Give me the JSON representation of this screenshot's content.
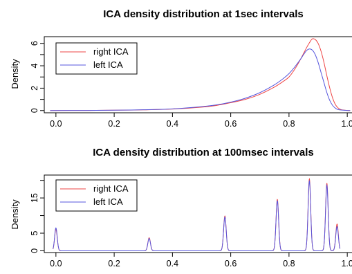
{
  "chart_data": [
    {
      "type": "line",
      "title": "ICA density distribution at 1sec intervals",
      "xlabel": "",
      "ylabel": "Density",
      "xlim": [
        -0.04,
        1.04
      ],
      "ylim": [
        -0.2,
        6.6
      ],
      "x_ticks": [
        0.0,
        0.2,
        0.4,
        0.6,
        0.8,
        1.0
      ],
      "x_tick_labels": [
        "0.0",
        "0.2",
        "0.4",
        "0.6",
        "0.8",
        "1.0"
      ],
      "y_ticks": [
        0,
        2,
        4,
        6
      ],
      "y_tick_labels": [
        "0",
        "2",
        "4",
        "6"
      ],
      "y_minor_ticks": [
        1,
        3,
        5
      ],
      "grid": false,
      "legend_position": "top-left",
      "series": [
        {
          "name": "right ICA",
          "color": "#ee4444",
          "x": [
            -0.02,
            0.1,
            0.2,
            0.3,
            0.4,
            0.5,
            0.55,
            0.6,
            0.65,
            0.7,
            0.75,
            0.78,
            0.8,
            0.82,
            0.84,
            0.86,
            0.87,
            0.88,
            0.89,
            0.9,
            0.91,
            0.92,
            0.93,
            0.94,
            0.95,
            0.96,
            0.97,
            0.98,
            1.0,
            1.01
          ],
          "y": [
            0,
            0.01,
            0.03,
            0.06,
            0.13,
            0.3,
            0.45,
            0.7,
            1.0,
            1.45,
            2.1,
            2.6,
            3.0,
            3.7,
            4.6,
            5.6,
            6.05,
            6.4,
            6.35,
            6.0,
            5.3,
            4.3,
            3.1,
            2.0,
            1.1,
            0.5,
            0.2,
            0.07,
            0.01,
            0
          ]
        },
        {
          "name": "left ICA",
          "color": "#5555dd",
          "x": [
            -0.02,
            0.1,
            0.2,
            0.3,
            0.4,
            0.5,
            0.55,
            0.6,
            0.65,
            0.7,
            0.75,
            0.78,
            0.8,
            0.82,
            0.84,
            0.85,
            0.86,
            0.87,
            0.88,
            0.89,
            0.9,
            0.91,
            0.92,
            0.93,
            0.94,
            0.95,
            0.96,
            0.97,
            1.0,
            1.01
          ],
          "y": [
            0,
            0.01,
            0.03,
            0.07,
            0.15,
            0.35,
            0.5,
            0.75,
            1.1,
            1.6,
            2.3,
            2.85,
            3.3,
            3.9,
            4.6,
            5.0,
            5.35,
            5.5,
            5.4,
            5.0,
            4.3,
            3.4,
            2.5,
            1.6,
            0.9,
            0.45,
            0.2,
            0.08,
            0.01,
            0
          ]
        }
      ]
    },
    {
      "type": "line",
      "title": "ICA density distribution at 100msec intervals",
      "xlabel": "",
      "ylabel": "Density",
      "xlim": [
        -0.04,
        1.04
      ],
      "ylim": [
        -0.5,
        21.5
      ],
      "x_ticks": [
        0.0,
        0.2,
        0.4,
        0.6,
        0.8,
        1.0
      ],
      "x_tick_labels": [
        "0.0",
        "0.2",
        "0.4",
        "0.6",
        "0.8",
        "1.0"
      ],
      "y_ticks": [
        0,
        5,
        15
      ],
      "y_tick_labels": [
        "0",
        "5",
        "15"
      ],
      "y_minor_ticks": [
        10,
        20
      ],
      "grid": false,
      "legend_position": "top-left",
      "peak_width": 0.0045,
      "series": [
        {
          "name": "right ICA",
          "color": "#ee4444",
          "x_range": [
            -0.01,
            0.975
          ],
          "peaks": [
            {
              "x": 0.0,
              "y": 6.1
            },
            {
              "x": 0.32,
              "y": 3.7
            },
            {
              "x": 0.58,
              "y": 9.9
            },
            {
              "x": 0.76,
              "y": 14.6
            },
            {
              "x": 0.87,
              "y": 20.4
            },
            {
              "x": 0.93,
              "y": 19.2
            },
            {
              "x": 0.965,
              "y": 7.6
            }
          ]
        },
        {
          "name": "left ICA",
          "color": "#5555dd",
          "x_range": [
            -0.01,
            0.975
          ],
          "peaks": [
            {
              "x": 0.0,
              "y": 6.5
            },
            {
              "x": 0.32,
              "y": 3.5
            },
            {
              "x": 0.58,
              "y": 9.6
            },
            {
              "x": 0.76,
              "y": 14.2
            },
            {
              "x": 0.87,
              "y": 19.8
            },
            {
              "x": 0.93,
              "y": 18.6
            },
            {
              "x": 0.965,
              "y": 6.9
            }
          ]
        }
      ]
    }
  ]
}
